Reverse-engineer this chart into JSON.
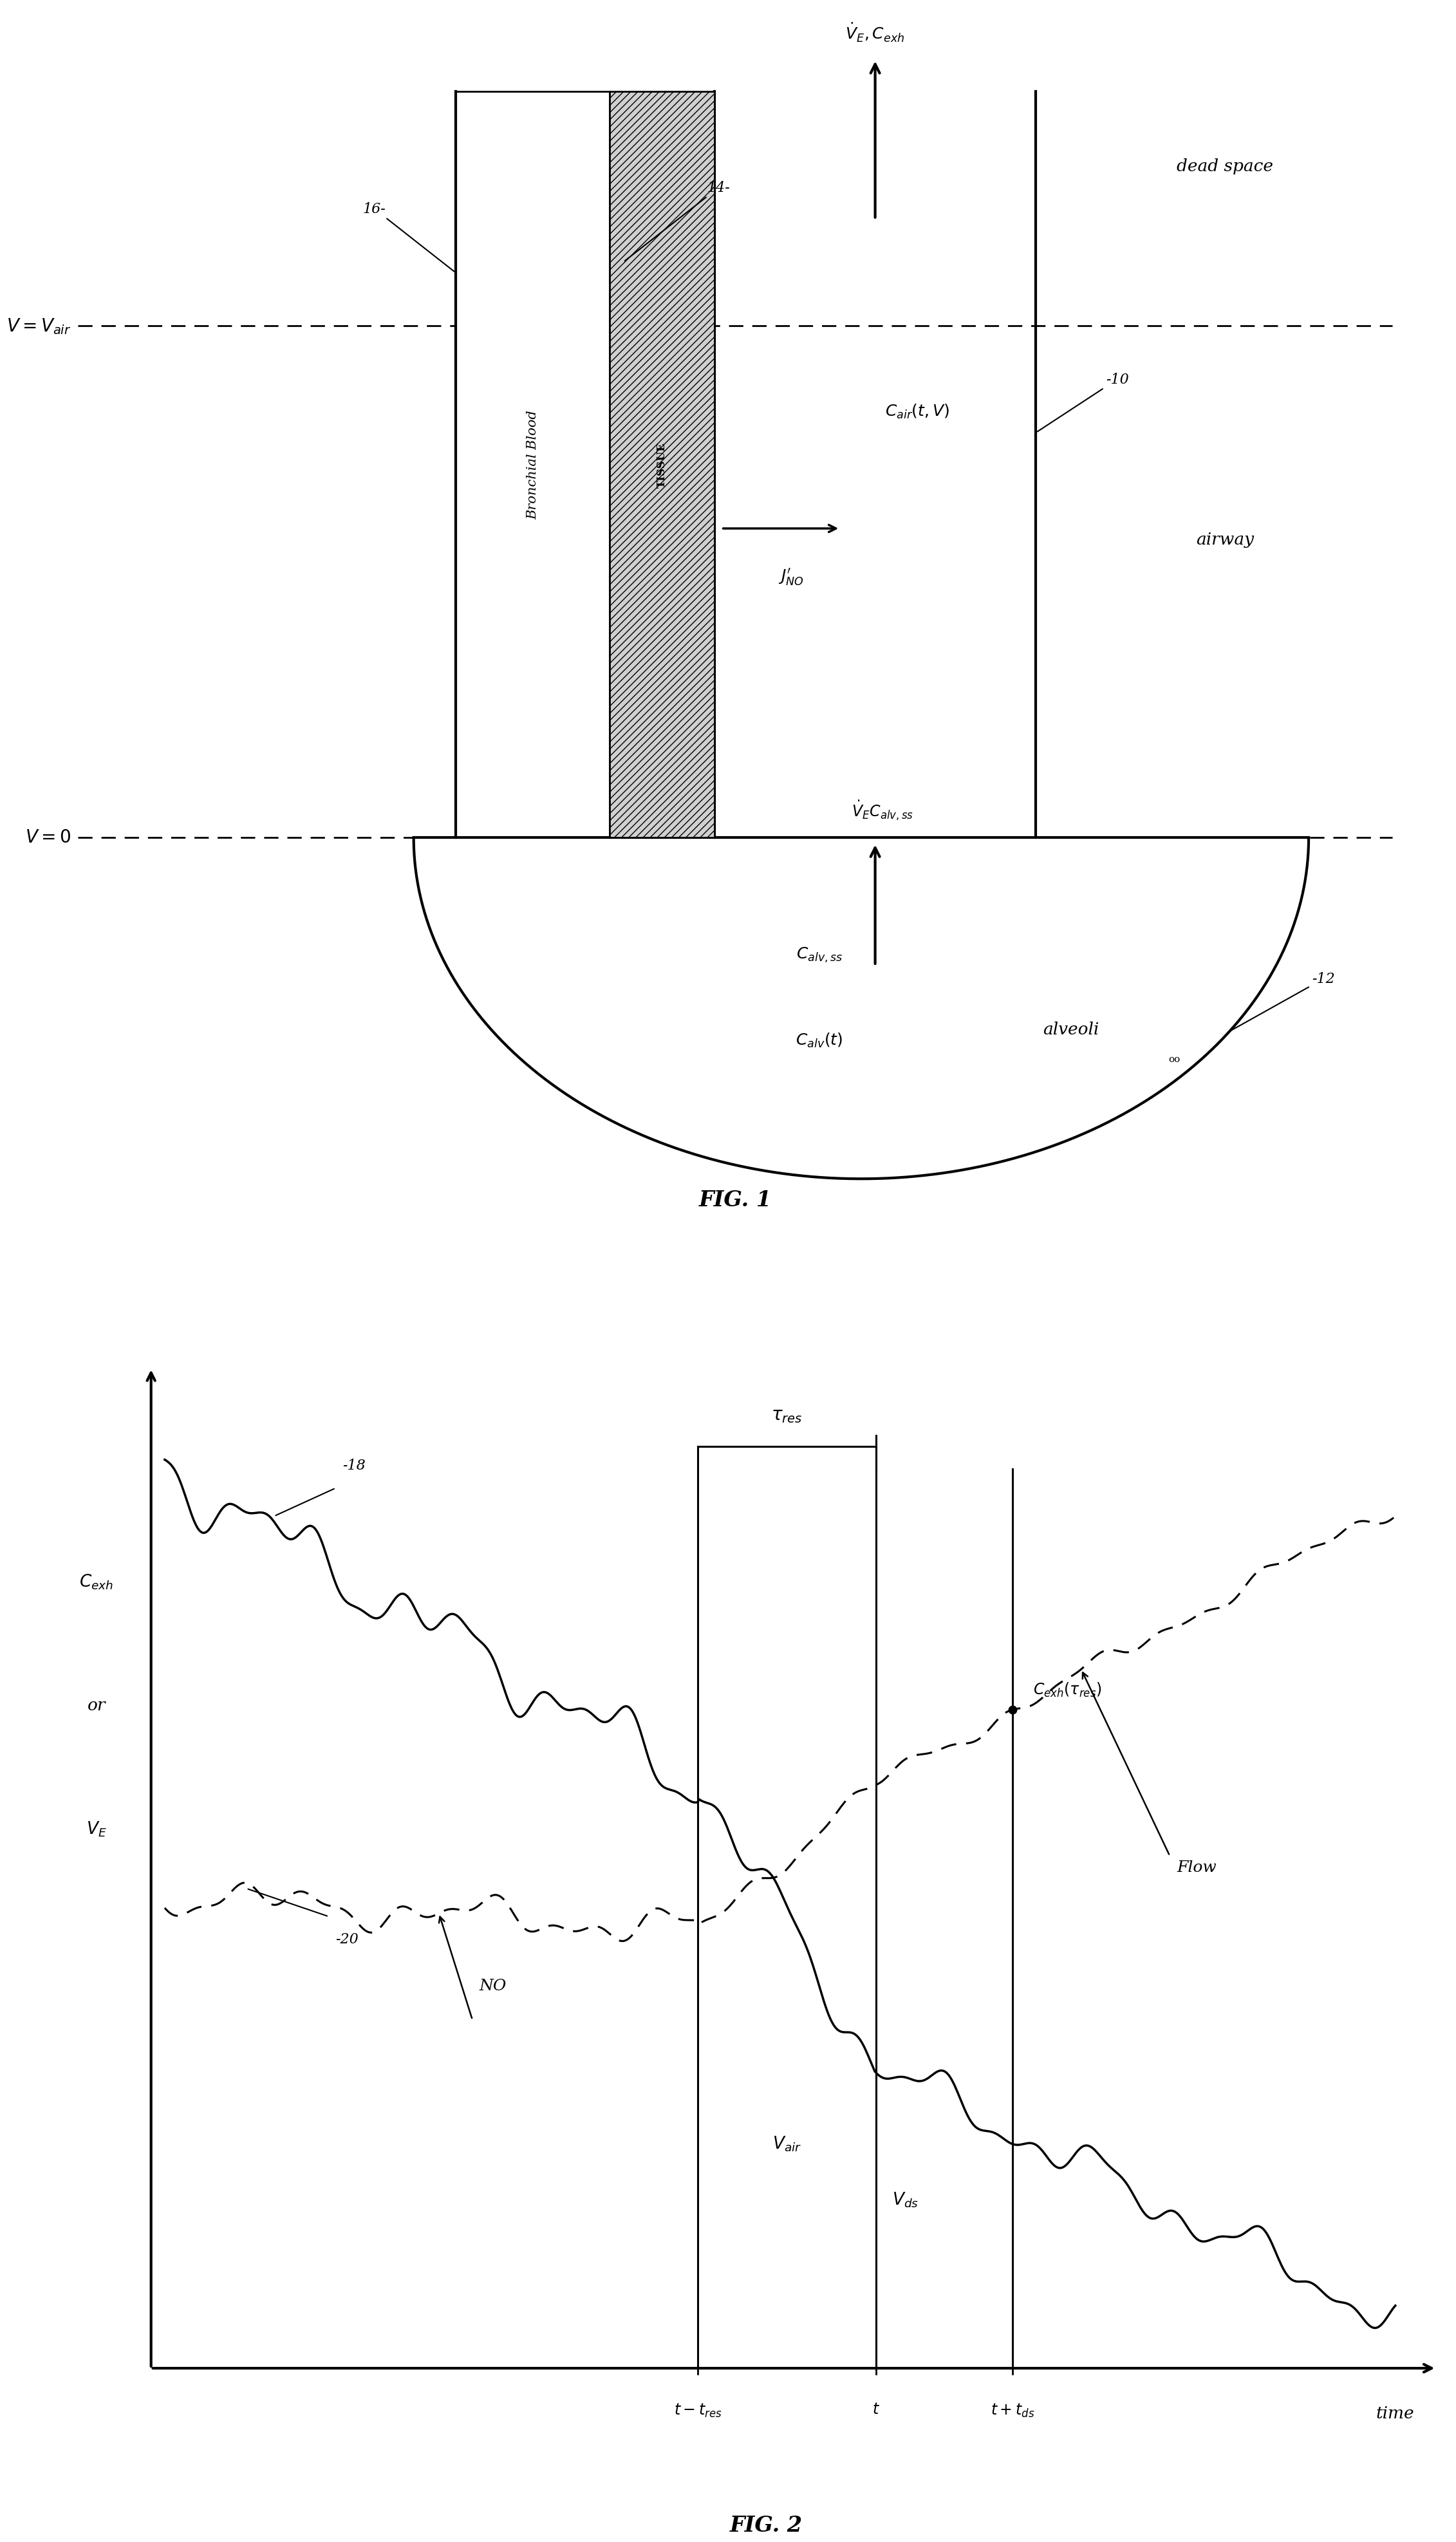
{
  "fig_width": 24.14,
  "fig_height": 39.68,
  "bg_color": "#ffffff",
  "line_color": "#000000",
  "fig1_title": "FIG. 1",
  "fig2_title": "FIG. 2",
  "labels": {
    "dead_space": "dead space",
    "airway": "airway",
    "v_eq_vair": "$V=V_{air}$",
    "v_eq_0": "$V=0$",
    "bronchial_blood": "Bronchial Blood",
    "tissue": "TISSUE",
    "c_air": "$C_{air}(t,V)$",
    "j_no": "$J^{\\prime}_{NO}$",
    "ve_cexh": "$\\dot{V}_E,C_{exh}$",
    "ve_calvss": "$\\dot{V}_E C_{alv,ss}$",
    "c_alvss": "$C_{alv,ss}$",
    "c_alv": "$C_{alv}(t)$",
    "alveoli": "alveoli",
    "ref_10": "-10",
    "ref_12": "-12",
    "ref_14": "14-",
    "ref_16": "16-",
    "cexh_label": "$C_{exh}$",
    "or_label": "or",
    "ve_label": "$V_E$",
    "tau_res": "$\\tau_{res}$",
    "v_air_label": "$V_{air}$",
    "v_ds_label": "$V_{ds}$",
    "t_label": "$t$",
    "t_tres_label": "$t-t_{res}$",
    "t_tds_label": "$t+t_{ds}$",
    "time_label": "time",
    "cexh_tau_res": "$C_{exh}(\\tau_{res})$",
    "flow_label": "Flow",
    "no_label": "NO",
    "ref_18": "-18",
    "ref_20": "-20"
  }
}
